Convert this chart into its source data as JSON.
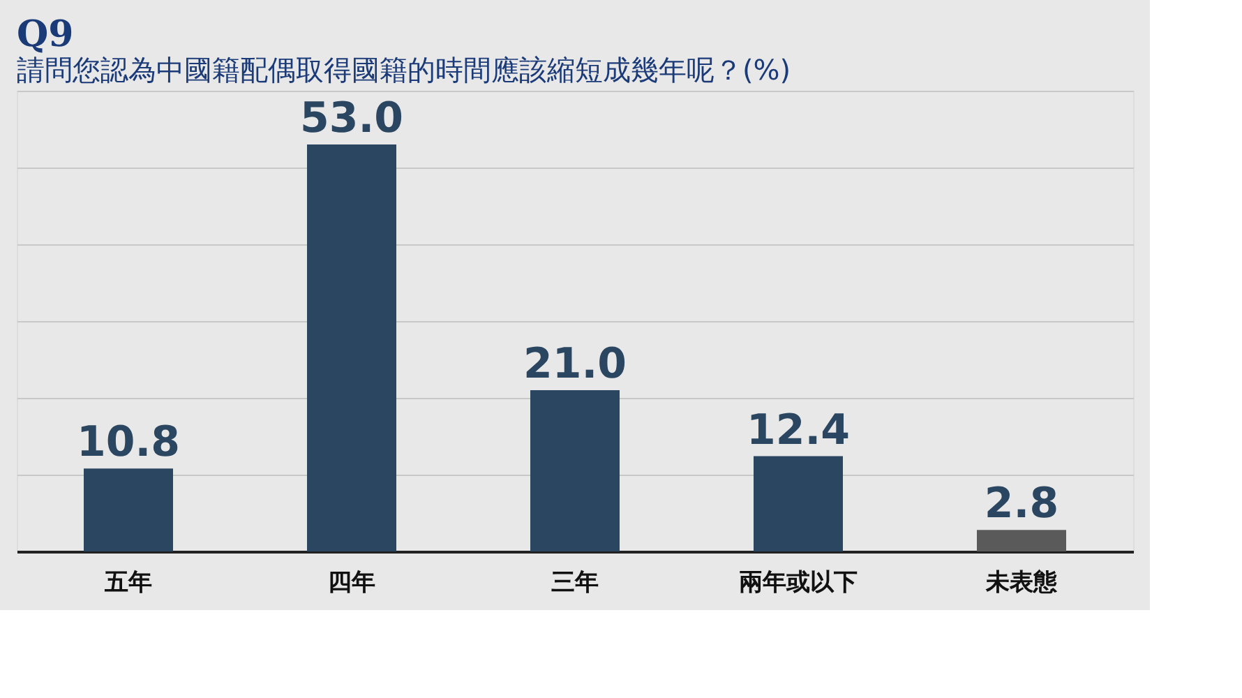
{
  "chart_data": {
    "type": "bar",
    "title": "Q9",
    "subtitle": "請問您認為中國籍配偶取得國籍的時間應該縮短成幾年呢？(%)",
    "categories": [
      "五年",
      "四年",
      "三年",
      "兩年或以下",
      "未表態"
    ],
    "values": [
      10.8,
      53.0,
      21.0,
      12.4,
      2.8
    ],
    "colors": [
      "#2b4660",
      "#2b4660",
      "#2b4660",
      "#2b4660",
      "#5a5a5a"
    ],
    "value_labels": [
      "10.8",
      "53.0",
      "21.0",
      "12.4",
      "2.8"
    ],
    "ylim": [
      0,
      60
    ],
    "yticks": [
      {
        "value": 0,
        "label": null
      },
      {
        "value": 10,
        "label": null
      },
      {
        "value": 20,
        "label": null
      },
      {
        "value": 30,
        "label": null
      },
      {
        "value": 40,
        "label": null
      },
      {
        "value": 50,
        "label": null
      },
      {
        "value": 60,
        "label": null
      }
    ],
    "tick_labels": "x",
    "grid": "y"
  }
}
